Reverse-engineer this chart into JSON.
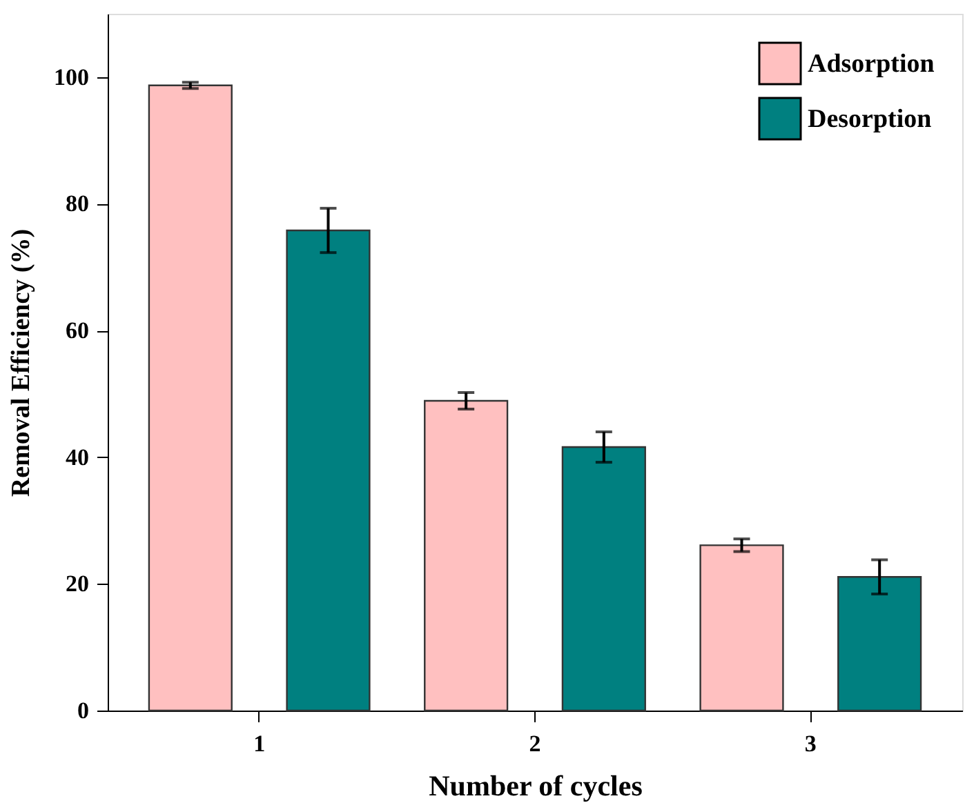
{
  "chart_data": {
    "type": "bar",
    "xlabel": "Number of cycles",
    "ylabel": "Removal Efficiency (%)",
    "categories": [
      "1",
      "2",
      "3"
    ],
    "series": [
      {
        "name": "Adsorption",
        "color": "#ffc0c0",
        "values": [
          98.7,
          48.9,
          26.1
        ],
        "errors": [
          0.5,
          1.3,
          1.0
        ]
      },
      {
        "name": "Desorption",
        "color": "#008080",
        "values": [
          75.8,
          41.6,
          21.1
        ],
        "errors": [
          3.5,
          2.4,
          2.7
        ]
      }
    ],
    "ylim": [
      0,
      110
    ],
    "yticks": [
      0,
      20,
      40,
      60,
      80,
      100
    ],
    "grid": false,
    "legend": "top right"
  }
}
